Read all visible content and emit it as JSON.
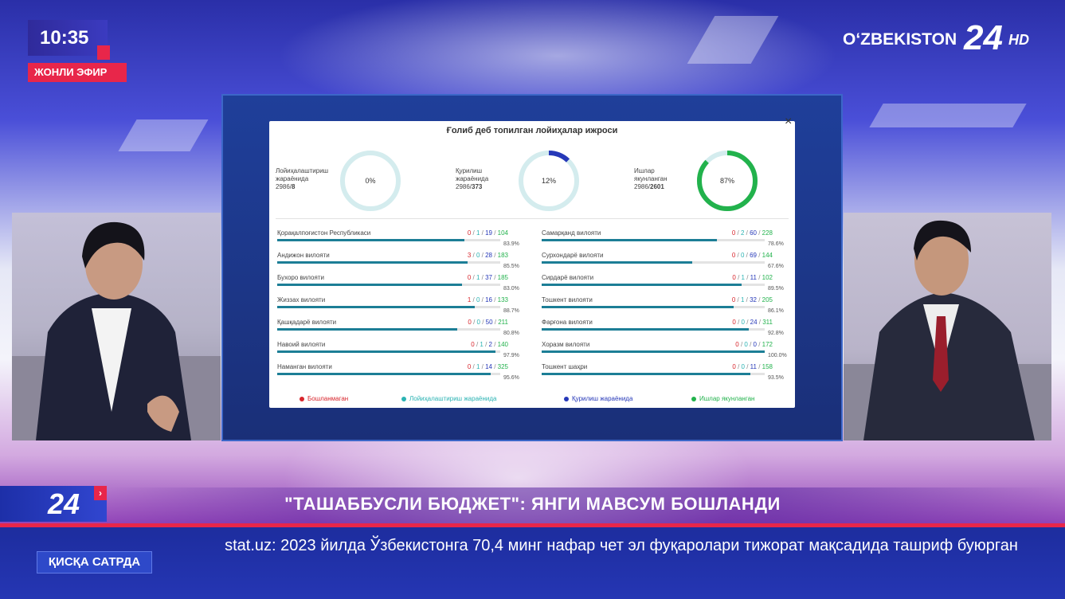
{
  "broadcast": {
    "clock": "10:35",
    "live_label": "ЖОНЛИ ЭФИР",
    "logo_text": "OʻZBEKISTON",
    "logo_number": "24",
    "logo_hd": "HD"
  },
  "dashboard": {
    "title": "Ғолиб деб топилган лойиҳалар ижроси",
    "close_symbol": "×",
    "gauges": [
      {
        "label_line1": "Лойиҳалаштириш",
        "label_line2": "жараёнида",
        "total": "2986/",
        "count": "8",
        "percent_label": "0%",
        "fraction": 0.0,
        "color": "#2bb3b3"
      },
      {
        "label_line1": "Қурилиш",
        "label_line2": "жараёнида",
        "total": "2986/",
        "count": "373",
        "percent_label": "12%",
        "fraction": 0.12,
        "color": "#2638b8"
      },
      {
        "label_line1": "Ишлар",
        "label_line2": "якунланган",
        "total": "2986/",
        "count": "2601",
        "percent_label": "87%",
        "fraction": 0.87,
        "color": "#22b24c"
      }
    ],
    "regions_left": [
      {
        "name": "Қорақалпоғистон Республикаси",
        "a": "0",
        "b": "1",
        "c": "19",
        "d": "104",
        "pct": "83.9%",
        "fraction": 0.839
      },
      {
        "name": "Андижон вилояти",
        "a": "3",
        "b": "0",
        "c": "28",
        "d": "183",
        "pct": "85.5%",
        "fraction": 0.855
      },
      {
        "name": "Бухоро вилояти",
        "a": "0",
        "b": "1",
        "c": "37",
        "d": "185",
        "pct": "83.0%",
        "fraction": 0.83
      },
      {
        "name": "Жиззах вилояти",
        "a": "1",
        "b": "0",
        "c": "16",
        "d": "133",
        "pct": "88.7%",
        "fraction": 0.887
      },
      {
        "name": "Қашқадарё вилояти",
        "a": "0",
        "b": "0",
        "c": "50",
        "d": "211",
        "pct": "80.8%",
        "fraction": 0.808
      },
      {
        "name": "Навоий вилояти",
        "a": "0",
        "b": "1",
        "c": "2",
        "d": "140",
        "pct": "97.9%",
        "fraction": 0.979
      },
      {
        "name": "Наманган вилояти",
        "a": "0",
        "b": "1",
        "c": "14",
        "d": "325",
        "pct": "95.6%",
        "fraction": 0.956
      }
    ],
    "regions_right": [
      {
        "name": "Самарқанд вилояти",
        "a": "0",
        "b": "2",
        "c": "60",
        "d": "228",
        "pct": "78.6%",
        "fraction": 0.786
      },
      {
        "name": "Сурхондарё вилояти",
        "a": "0",
        "b": "0",
        "c": "69",
        "d": "144",
        "pct": "67.6%",
        "fraction": 0.676
      },
      {
        "name": "Сирдарё вилояти",
        "a": "0",
        "b": "1",
        "c": "11",
        "d": "102",
        "pct": "89.5%",
        "fraction": 0.895
      },
      {
        "name": "Тошкент вилояти",
        "a": "0",
        "b": "1",
        "c": "32",
        "d": "205",
        "pct": "86.1%",
        "fraction": 0.861
      },
      {
        "name": "Фарғона вилояти",
        "a": "0",
        "b": "0",
        "c": "24",
        "d": "311",
        "pct": "92.8%",
        "fraction": 0.928
      },
      {
        "name": "Хоразм вилояти",
        "a": "0",
        "b": "0",
        "c": "0",
        "d": "172",
        "pct": "100.0%",
        "fraction": 1.0
      },
      {
        "name": "Тошкент шаҳри",
        "a": "0",
        "b": "0",
        "c": "11",
        "d": "158",
        "pct": "93.5%",
        "fraction": 0.935
      }
    ],
    "legend": [
      {
        "label": "Бошланмаган",
        "color": "#d8262d"
      },
      {
        "label": "Лойиҳалаштириш жараёнида",
        "color": "#2bb3b3"
      },
      {
        "label": "Қурилиш жараёнида",
        "color": "#2638b8"
      },
      {
        "label": "Ишлар якунланган",
        "color": "#22b24c"
      }
    ],
    "bar_color": "#1c7e96"
  },
  "lower_third": {
    "logo_number": "24",
    "headline": "\"ТАШАББУСЛИ БЮДЖЕТ\": ЯНГИ МАВСУМ БОШЛАНДИ",
    "ticker_label": "ҚИСҚА САТРДА",
    "ticker_text": "stat.uz: 2023 йилда Ўзбекистонга 70,4 минг нафар чет эл фуқаролари тижорат мақсадида ташриф буюрган"
  }
}
